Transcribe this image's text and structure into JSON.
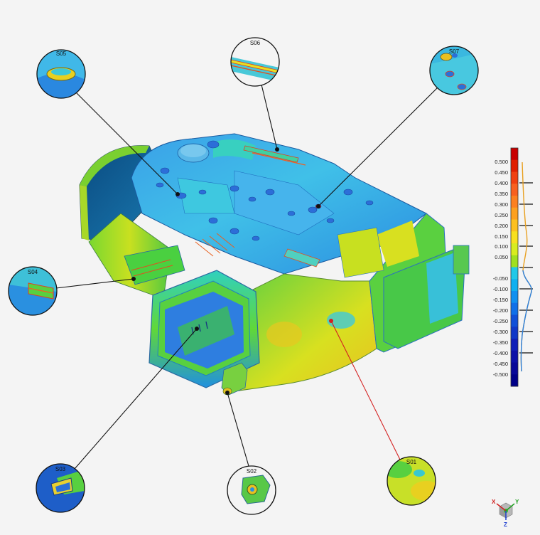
{
  "callouts": [
    {
      "id": "S05",
      "label": "S05"
    },
    {
      "id": "S06",
      "label": "S06"
    },
    {
      "id": "S07",
      "label": "S07"
    },
    {
      "id": "S04",
      "label": "S04"
    },
    {
      "id": "S03",
      "label": "S03"
    },
    {
      "id": "S02",
      "label": "S02"
    },
    {
      "id": "S01",
      "label": "S01"
    }
  ],
  "color_scale": {
    "labels": [
      "0.500",
      "0.450",
      "0.400",
      "0.350",
      "0.300",
      "0.250",
      "0.200",
      "0.150",
      "0.100",
      "0.050",
      "-0.050",
      "-0.100",
      "-0.150",
      "-0.200",
      "-0.250",
      "-0.300",
      "-0.350",
      "-0.400",
      "-0.450",
      "-0.500"
    ],
    "colors": [
      "#c80000",
      "#e02000",
      "#f04010",
      "#f86020",
      "#fc8020",
      "#fca020",
      "#fcc020",
      "#f8e020",
      "#d8ec20",
      "#a0e020",
      "#20c8e8",
      "#10b0f0",
      "#1090f0",
      "#1070e8",
      "#1050d8",
      "#1038c8",
      "#1020b8",
      "#0c10a8",
      "#080898",
      "#000088"
    ]
  },
  "axis_triad": {
    "x": "X",
    "y": "Y",
    "z": "Z"
  },
  "colors": {
    "blue": "#1e6fd8",
    "cyan": "#30c8e0",
    "green": "#4cd630",
    "yellow": "#e8e020",
    "leader": "#111111",
    "leader_highlight": "#d42020"
  }
}
